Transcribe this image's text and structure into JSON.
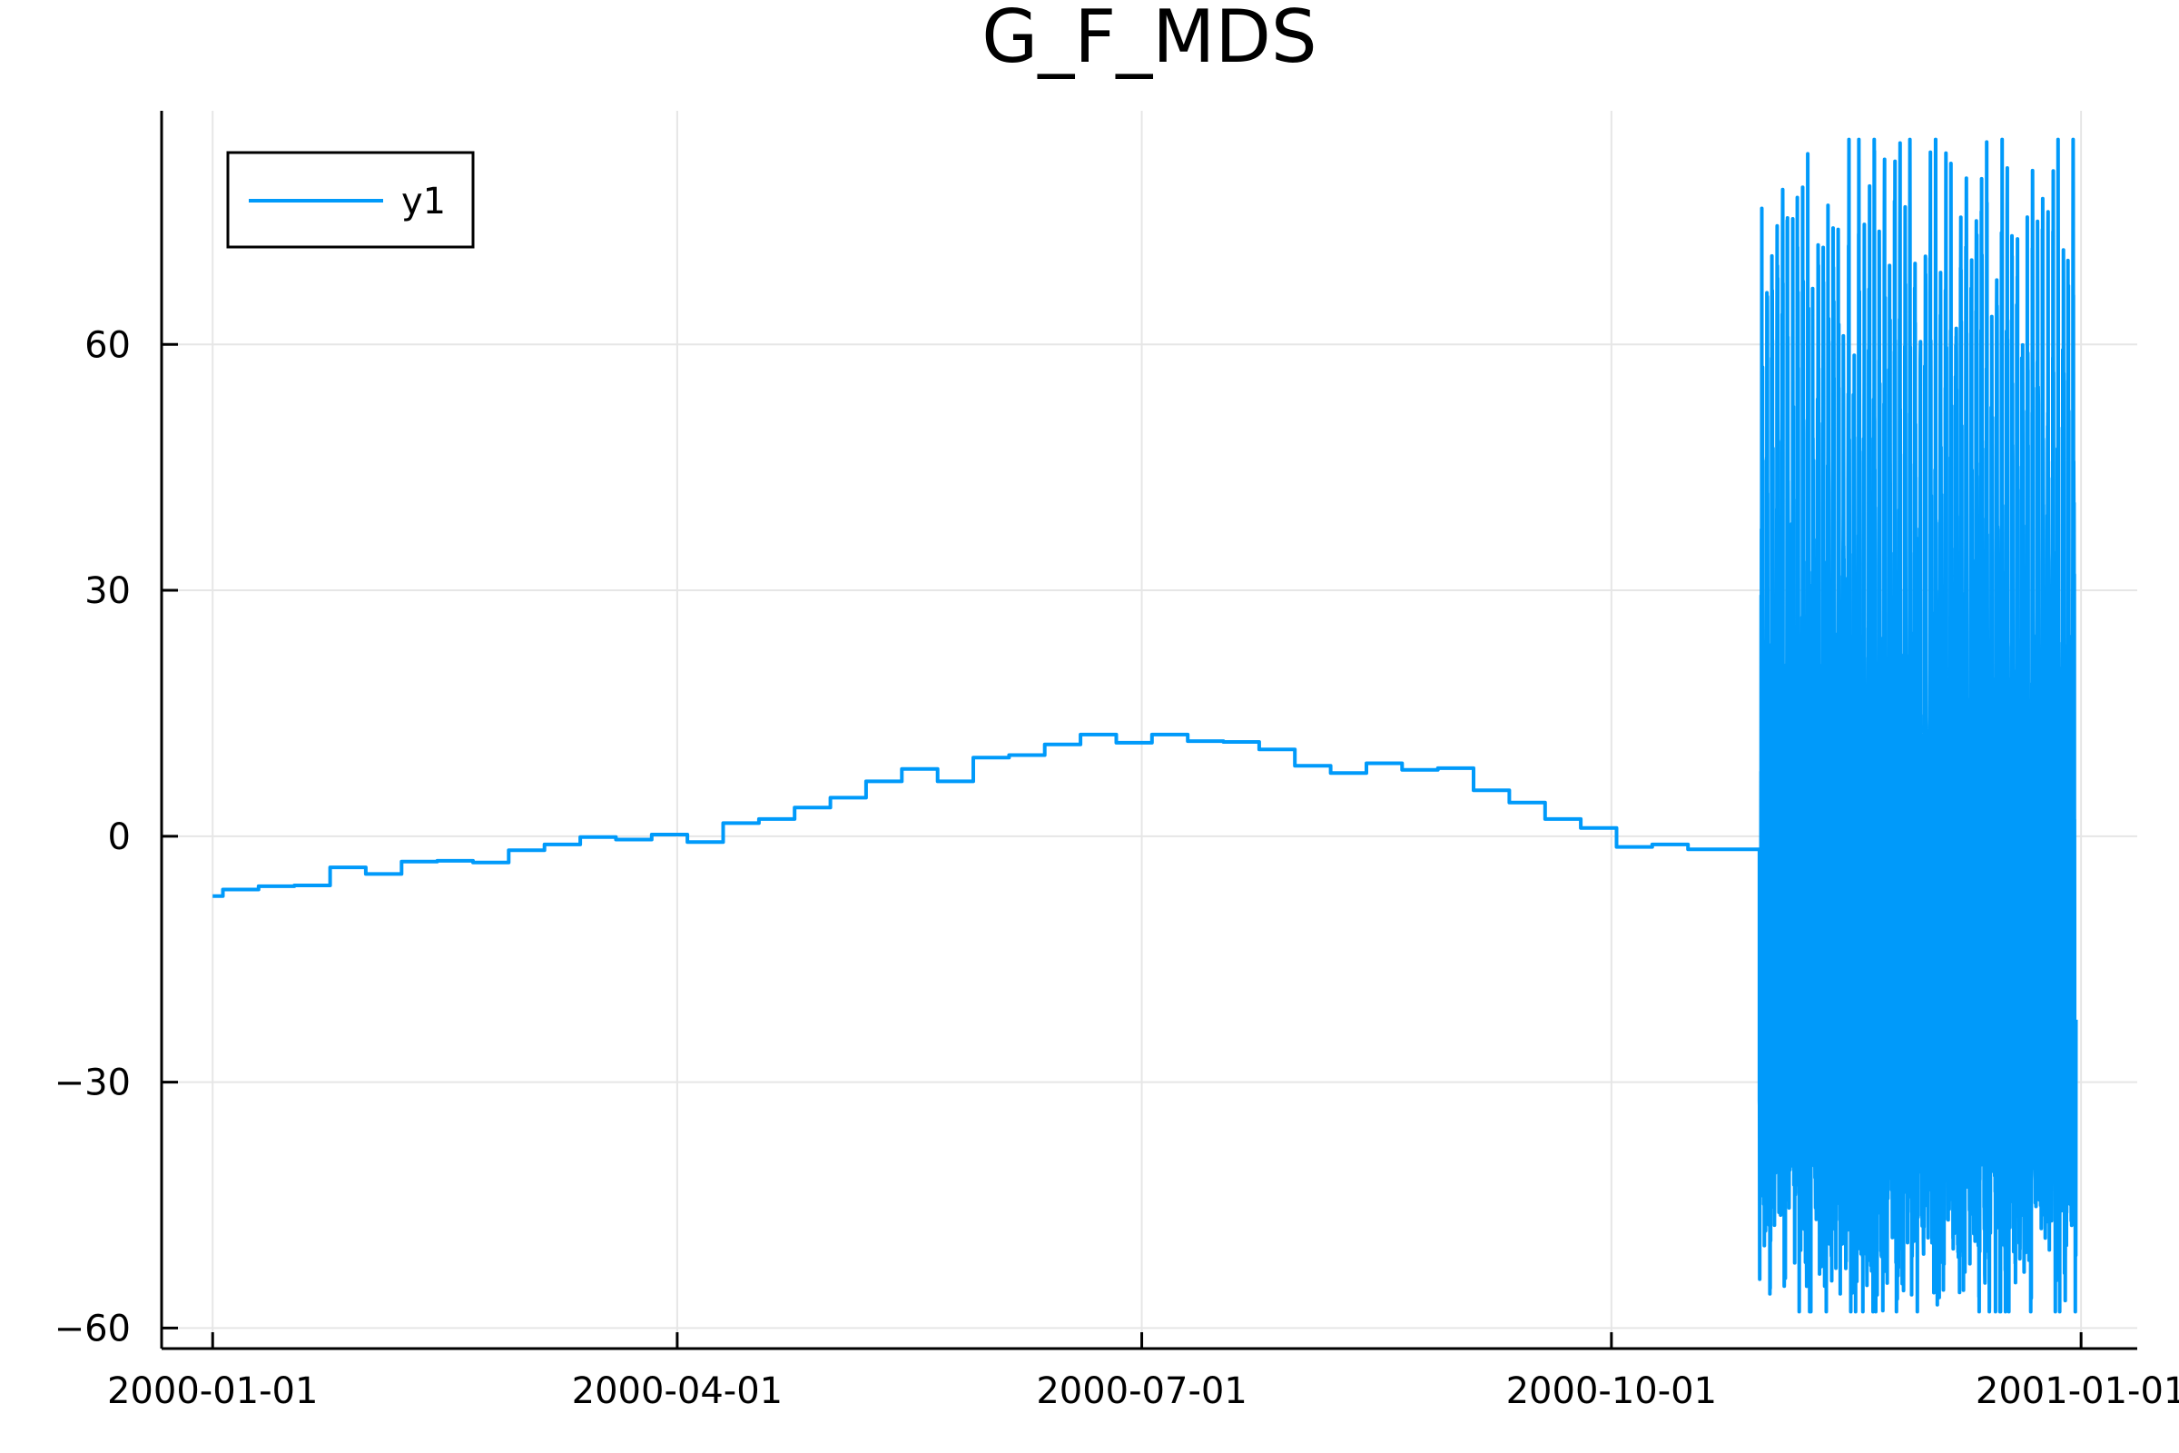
{
  "chart_data": {
    "type": "line",
    "title": "G_F_MDS",
    "xlabel": "",
    "ylabel": "",
    "x_ticks": [
      "2000-01-01",
      "2000-04-01",
      "2000-07-01",
      "2000-10-01",
      "2001-01-01"
    ],
    "y_ticks": [
      60,
      30,
      0,
      -30,
      -60
    ],
    "y_tick_labels": [
      "60",
      "30",
      "0",
      "−30",
      "−60"
    ],
    "xlim": [
      "1999-12-22",
      "2001-01-12"
    ],
    "ylim": [
      -62.5,
      88.5
    ],
    "grid": true,
    "legend": {
      "position": "top-left",
      "entries": [
        "y1"
      ]
    },
    "series": [
      {
        "name": "y1",
        "color": "#009AFA",
        "weekly_step": {
          "dates": [
            "2000-01-01",
            "2000-01-03",
            "2000-01-10",
            "2000-01-17",
            "2000-01-24",
            "2000-01-31",
            "2000-02-07",
            "2000-02-14",
            "2000-02-21",
            "2000-02-28",
            "2000-03-06",
            "2000-03-13",
            "2000-03-20",
            "2000-03-27",
            "2000-04-03",
            "2000-04-10",
            "2000-04-17",
            "2000-04-24",
            "2000-05-01",
            "2000-05-08",
            "2000-05-15",
            "2000-05-22",
            "2000-05-29",
            "2000-06-05",
            "2000-06-12",
            "2000-06-19",
            "2000-06-26",
            "2000-07-03",
            "2000-07-10",
            "2000-07-17",
            "2000-07-24",
            "2000-07-31",
            "2000-08-07",
            "2000-08-14",
            "2000-08-21",
            "2000-08-28",
            "2000-09-04",
            "2000-09-11",
            "2000-09-18",
            "2000-09-25",
            "2000-10-02",
            "2000-10-09",
            "2000-10-16",
            "2000-10-23"
          ],
          "values": [
            -7.3,
            -6.5,
            -6.1,
            -6.0,
            -3.8,
            -4.6,
            -3.1,
            -3.0,
            -3.2,
            -1.7,
            -1.0,
            -0.1,
            -0.4,
            0.2,
            -0.7,
            1.6,
            2.1,
            3.5,
            4.7,
            6.7,
            8.2,
            6.7,
            9.6,
            9.9,
            11.2,
            12.4,
            11.4,
            12.4,
            11.6,
            11.5,
            10.6,
            8.6,
            7.7,
            8.9,
            8.1,
            8.3,
            5.6,
            4.1,
            2.1,
            1.0,
            -1.3,
            -1.0,
            -1.6,
            -1.6
          ]
        },
        "daily_noise": {
          "start": "2000-10-30",
          "end": "2000-12-31",
          "amplitude_range": [
            -58,
            85
          ]
        }
      }
    ]
  }
}
